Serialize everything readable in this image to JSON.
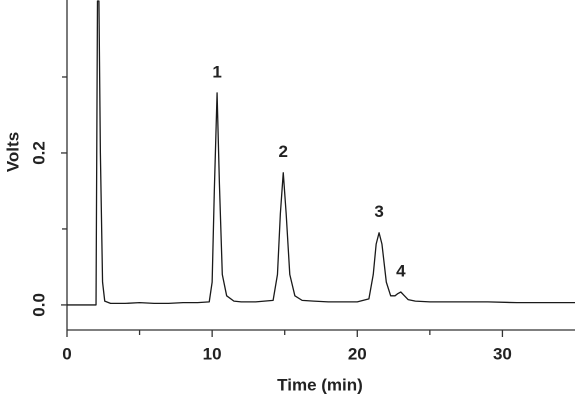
{
  "chart_data": {
    "type": "line",
    "xlabel": "Time (min)",
    "ylabel": "Volts",
    "x": [
      0,
      2.0,
      2.05,
      2.1,
      2.2,
      2.3,
      2.45,
      2.6,
      3,
      4,
      5,
      6,
      7,
      8,
      9,
      9.8,
      10.0,
      10.15,
      10.34,
      10.5,
      10.7,
      11,
      11.5,
      12,
      13,
      14.2,
      14.5,
      14.7,
      14.9,
      15.1,
      15.35,
      15.7,
      16.2,
      17,
      18,
      19,
      20,
      20.8,
      21.1,
      21.3,
      21.5,
      21.7,
      22.0,
      22.3,
      22.6,
      22.8,
      23.0,
      23.2,
      23.5,
      24,
      25,
      27,
      29,
      31,
      33,
      35
    ],
    "values": [
      0.0,
      0.0,
      0.2,
      0.4,
      0.4,
      0.2,
      0.03,
      0.005,
      0.002,
      0.002,
      0.003,
      0.002,
      0.002,
      0.003,
      0.003,
      0.004,
      0.03,
      0.15,
      0.279,
      0.16,
      0.04,
      0.012,
      0.005,
      0.004,
      0.004,
      0.006,
      0.04,
      0.12,
      0.174,
      0.12,
      0.04,
      0.012,
      0.006,
      0.005,
      0.004,
      0.004,
      0.004,
      0.008,
      0.04,
      0.08,
      0.095,
      0.08,
      0.03,
      0.012,
      0.012,
      0.015,
      0.017,
      0.013,
      0.007,
      0.005,
      0.004,
      0.004,
      0.004,
      0.003,
      0.003,
      0.003
    ],
    "color": "#1a1a1a",
    "peaks": [
      {
        "label": "1",
        "time": 10.34,
        "height": 0.279
      },
      {
        "label": "2",
        "time": 14.9,
        "height": 0.174
      },
      {
        "label": "3",
        "time": 21.5,
        "height": 0.095
      },
      {
        "label": "4",
        "time": 23.0,
        "height": 0.017
      }
    ],
    "xlim": [
      0,
      35
    ],
    "xticks": [
      0,
      10,
      20,
      30
    ],
    "minor_xticks": [
      5,
      15,
      25
    ],
    "ylim": [
      -0.033,
      0.4
    ],
    "yticks": [
      {
        "value": 0,
        "label": "0.0"
      },
      0.2
    ],
    "minor_yticks": [
      0.1,
      0.3
    ],
    "grid": false
  }
}
